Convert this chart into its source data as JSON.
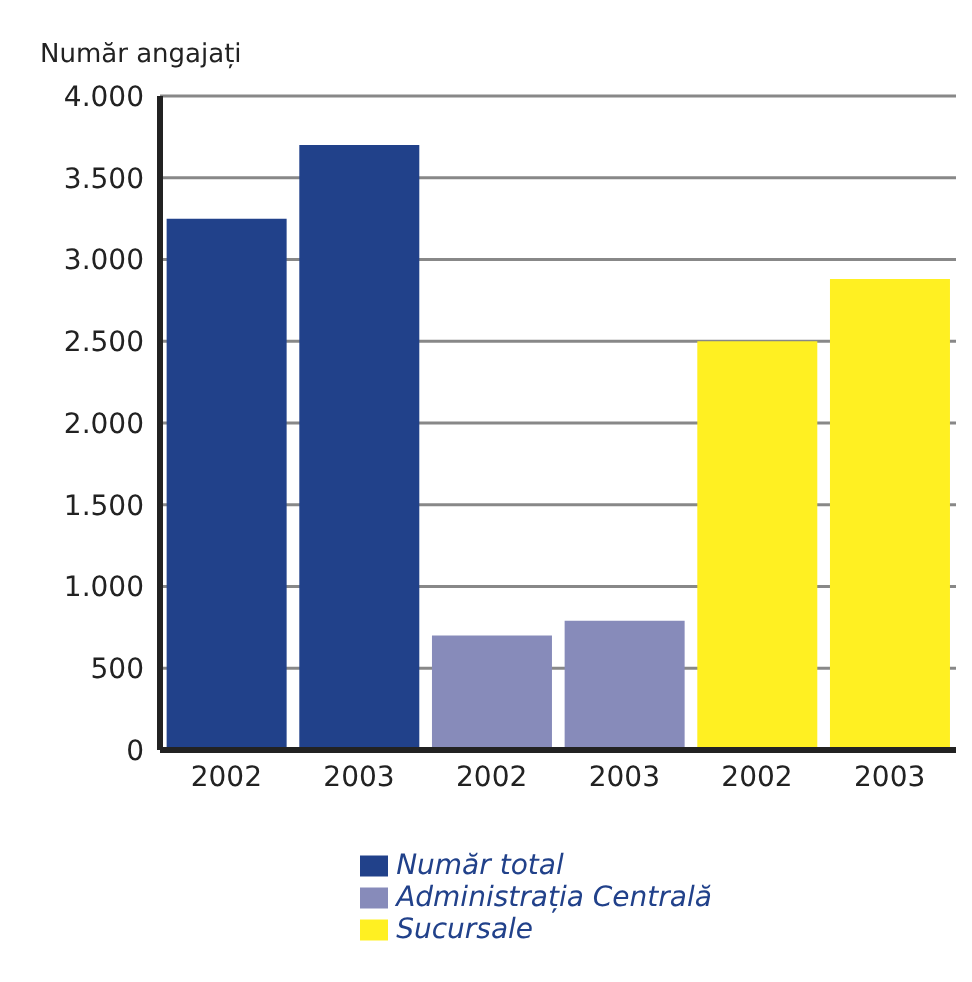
{
  "chart_data": {
    "type": "bar",
    "ylabel": "Număr angajați",
    "categories": [
      "2002",
      "2003",
      "2002",
      "2003",
      "2002",
      "2003"
    ],
    "series": [
      {
        "name": "Număr total",
        "color": "#21418a",
        "values": [
          3250,
          3700,
          null,
          null,
          null,
          null
        ]
      },
      {
        "name": "Administrația Centrală",
        "color": "#878bba",
        "values": [
          null,
          null,
          700,
          790,
          null,
          null
        ]
      },
      {
        "name": "Sucursale",
        "color": "#fff022",
        "values": [
          null,
          null,
          null,
          null,
          2500,
          2880
        ]
      }
    ],
    "ylim": [
      0,
      4000
    ],
    "yticks": [
      {
        "value": 0,
        "label": "0"
      },
      {
        "value": 500,
        "label": "500"
      },
      {
        "value": 1000,
        "label": "1.000"
      },
      {
        "value": 1500,
        "label": "1.500"
      },
      {
        "value": 2000,
        "label": "2.000"
      },
      {
        "value": 2500,
        "label": "2.500"
      },
      {
        "value": 3000,
        "label": "3.000"
      },
      {
        "value": 3500,
        "label": "3.500"
      },
      {
        "value": 4000,
        "label": "4.000"
      }
    ],
    "grid": "y",
    "legend": "bottom"
  }
}
